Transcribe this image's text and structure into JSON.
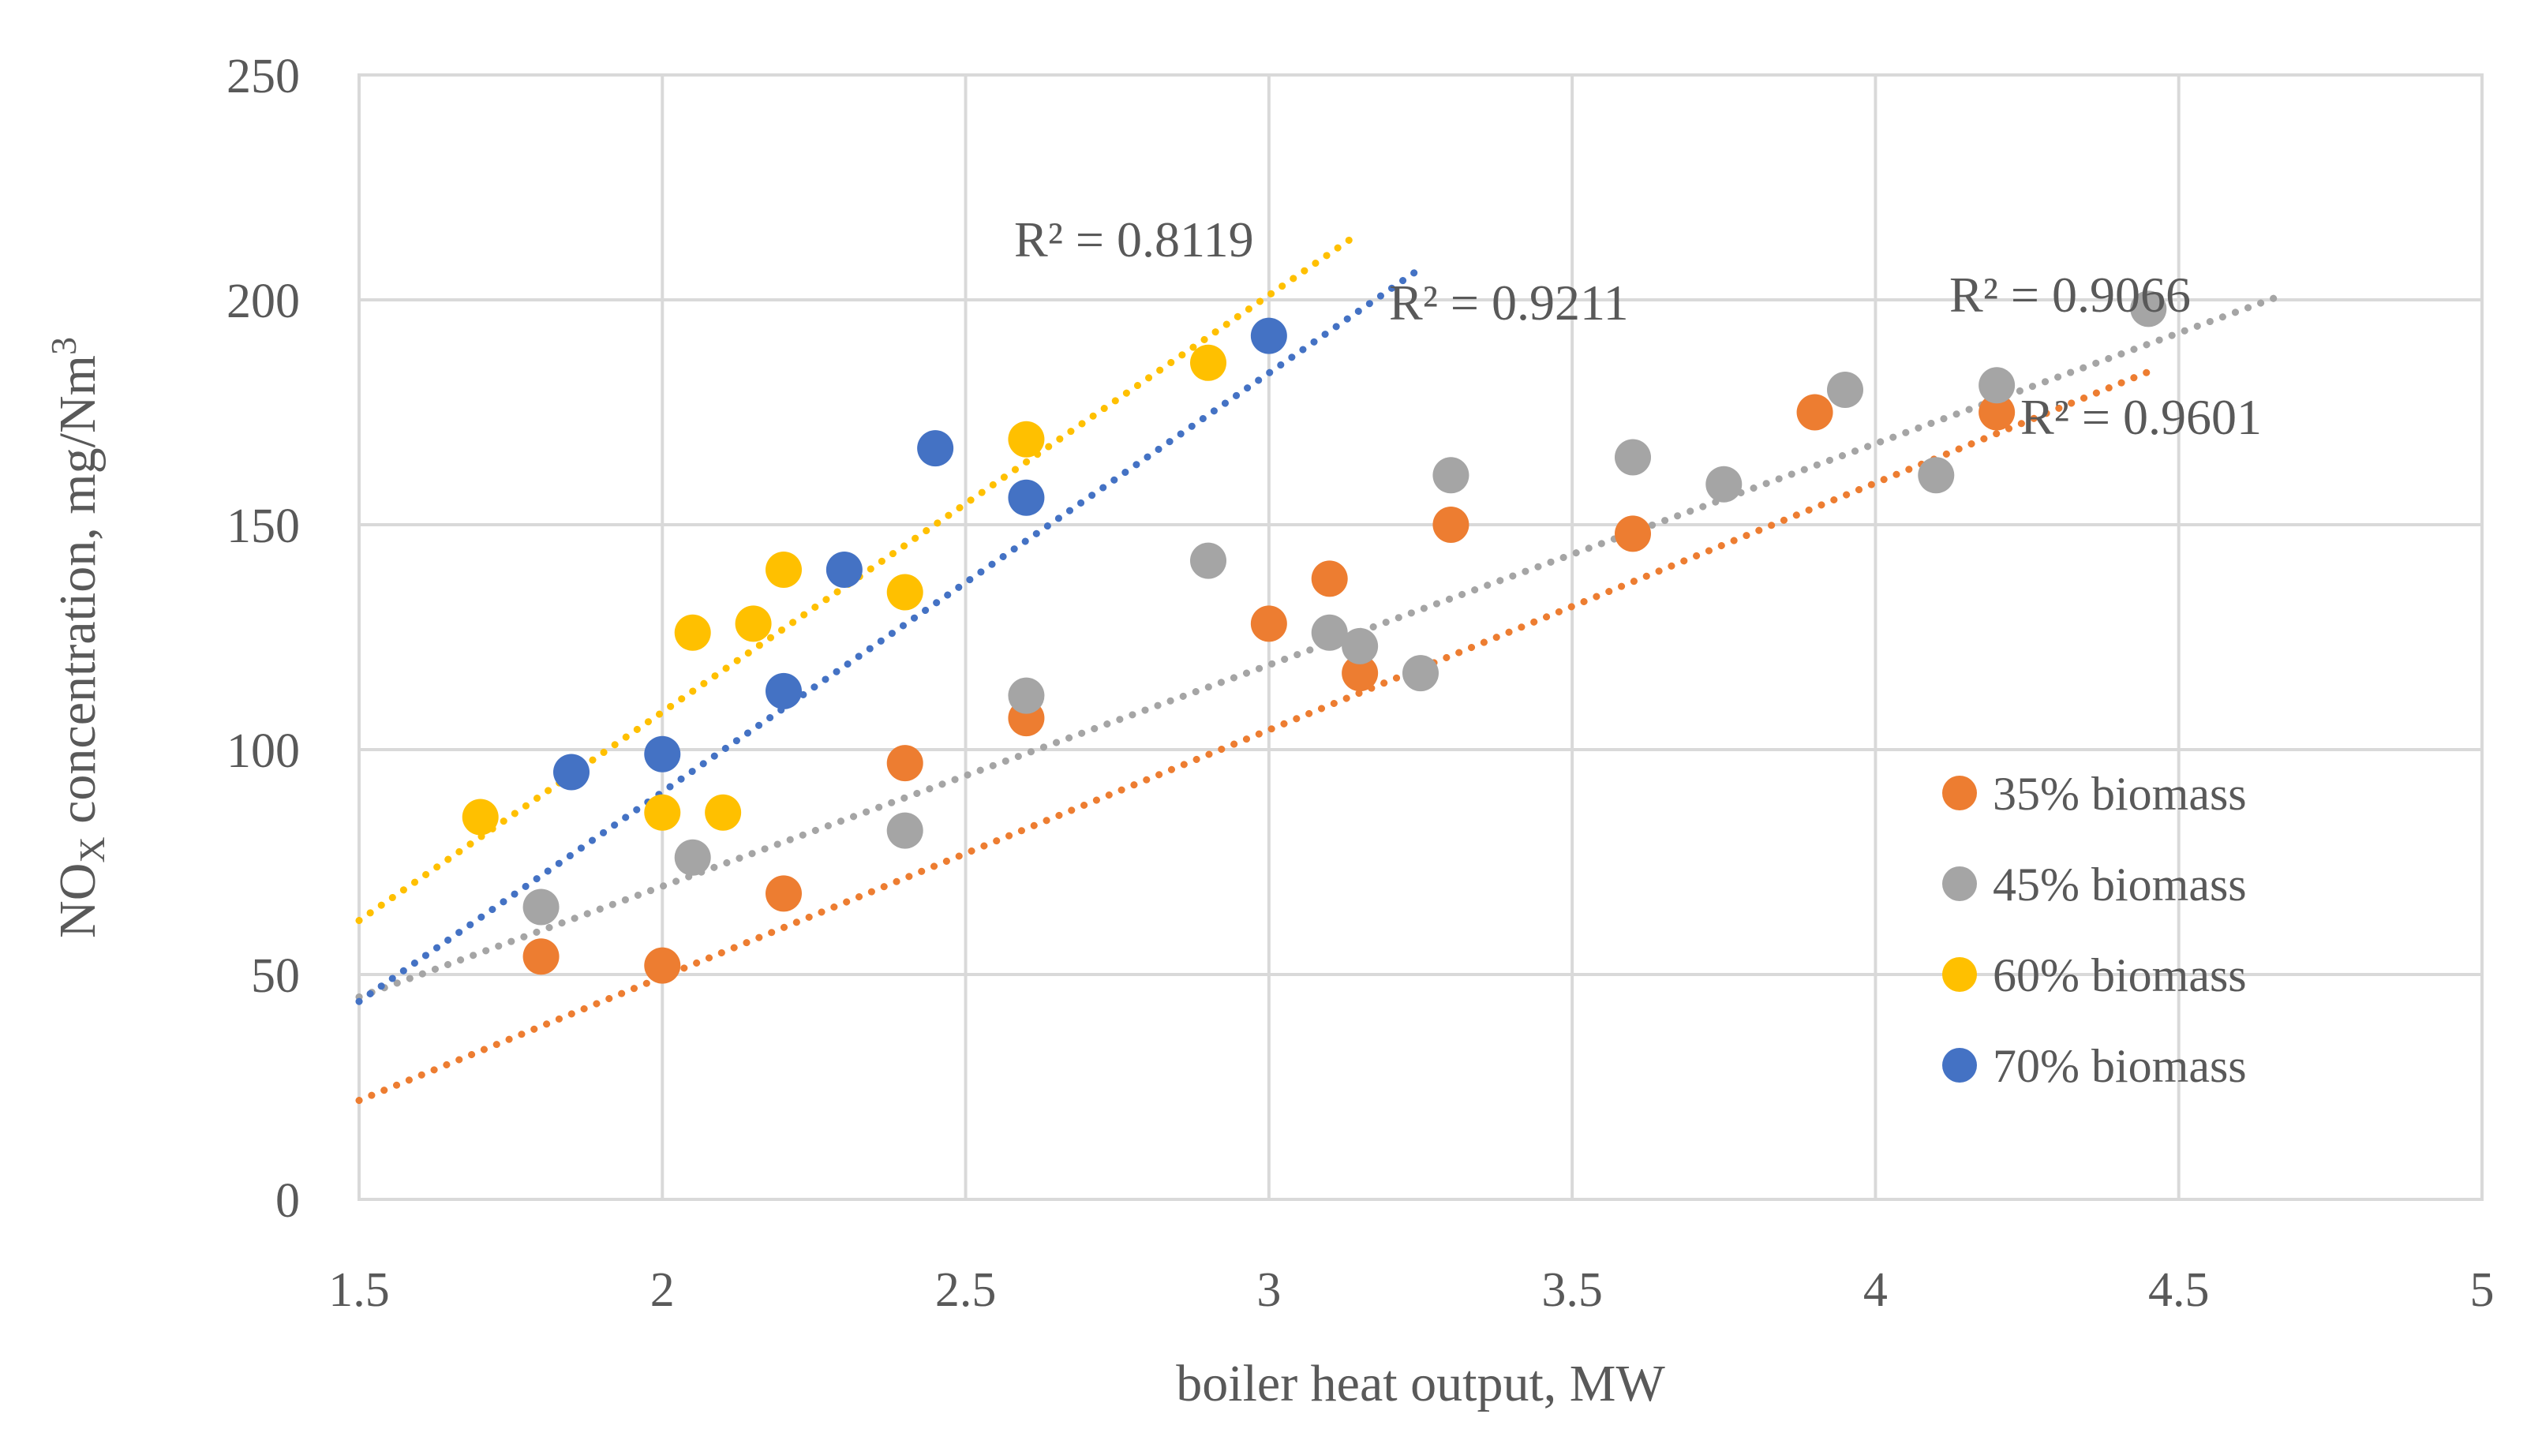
{
  "chart_data": {
    "type": "scatter",
    "title": "",
    "xlabel": "boiler heat output, MW",
    "ylabel_main": "NO",
    "ylabel_sub": "X",
    "ylabel_rest": " concentration, mg/Nm",
    "ylabel_sup": "3",
    "xlim": [
      1.5,
      5
    ],
    "ylim": [
      0,
      250
    ],
    "xticks": [
      1.5,
      2,
      2.5,
      3,
      3.5,
      4,
      4.5,
      5
    ],
    "yticks": [
      0,
      50,
      100,
      150,
      200,
      250
    ],
    "xtick_labels": [
      "1.5",
      "2",
      "2.5",
      "3",
      "3.5",
      "4",
      "4.5",
      "5"
    ],
    "ytick_labels": [
      "0",
      "50",
      "100",
      "150",
      "200",
      "250"
    ],
    "grid": true,
    "legend_position": "right",
    "series": [
      {
        "name": "35% biomass",
        "color": "#ED7D31",
        "points": [
          [
            1.8,
            54
          ],
          [
            2.0,
            52
          ],
          [
            2.2,
            68
          ],
          [
            2.4,
            97
          ],
          [
            2.6,
            107
          ],
          [
            3.0,
            128
          ],
          [
            3.1,
            138
          ],
          [
            3.15,
            117
          ],
          [
            3.3,
            150
          ],
          [
            3.6,
            148
          ],
          [
            3.9,
            175
          ],
          [
            4.2,
            175
          ]
        ],
        "trend": [
          [
            1.5,
            22
          ],
          [
            4.45,
            184
          ]
        ],
        "r2": "R² = 0.9601"
      },
      {
        "name": "45% biomass",
        "color": "#A5A5A5",
        "points": [
          [
            1.8,
            65
          ],
          [
            2.05,
            76
          ],
          [
            2.4,
            82
          ],
          [
            2.6,
            112
          ],
          [
            2.9,
            142
          ],
          [
            3.1,
            126
          ],
          [
            3.15,
            123
          ],
          [
            3.25,
            117
          ],
          [
            3.3,
            161
          ],
          [
            3.6,
            165
          ],
          [
            3.75,
            159
          ],
          [
            3.95,
            180
          ],
          [
            4.1,
            161
          ],
          [
            4.2,
            181
          ],
          [
            4.45,
            198
          ]
        ],
        "trend": [
          [
            1.5,
            45
          ],
          [
            4.67,
            201
          ]
        ],
        "r2": "R² = 0.9066"
      },
      {
        "name": "60% biomass",
        "color": "#FFC000",
        "points": [
          [
            1.7,
            85
          ],
          [
            2.0,
            86
          ],
          [
            2.05,
            126
          ],
          [
            2.1,
            86
          ],
          [
            2.15,
            128
          ],
          [
            2.2,
            140
          ],
          [
            2.4,
            135
          ],
          [
            2.6,
            169
          ],
          [
            2.9,
            186
          ]
        ],
        "trend": [
          [
            1.5,
            62
          ],
          [
            3.14,
            214
          ]
        ],
        "r2": "R² = 0.8119"
      },
      {
        "name": "70% biomass",
        "color": "#4472C4",
        "points": [
          [
            1.85,
            95
          ],
          [
            2.0,
            99
          ],
          [
            2.2,
            113
          ],
          [
            2.3,
            140
          ],
          [
            2.45,
            167
          ],
          [
            2.6,
            156
          ],
          [
            3.0,
            192
          ]
        ],
        "trend": [
          [
            1.5,
            44
          ],
          [
            3.25,
            207
          ]
        ],
        "r2": "R² = 0.9211"
      }
    ]
  }
}
